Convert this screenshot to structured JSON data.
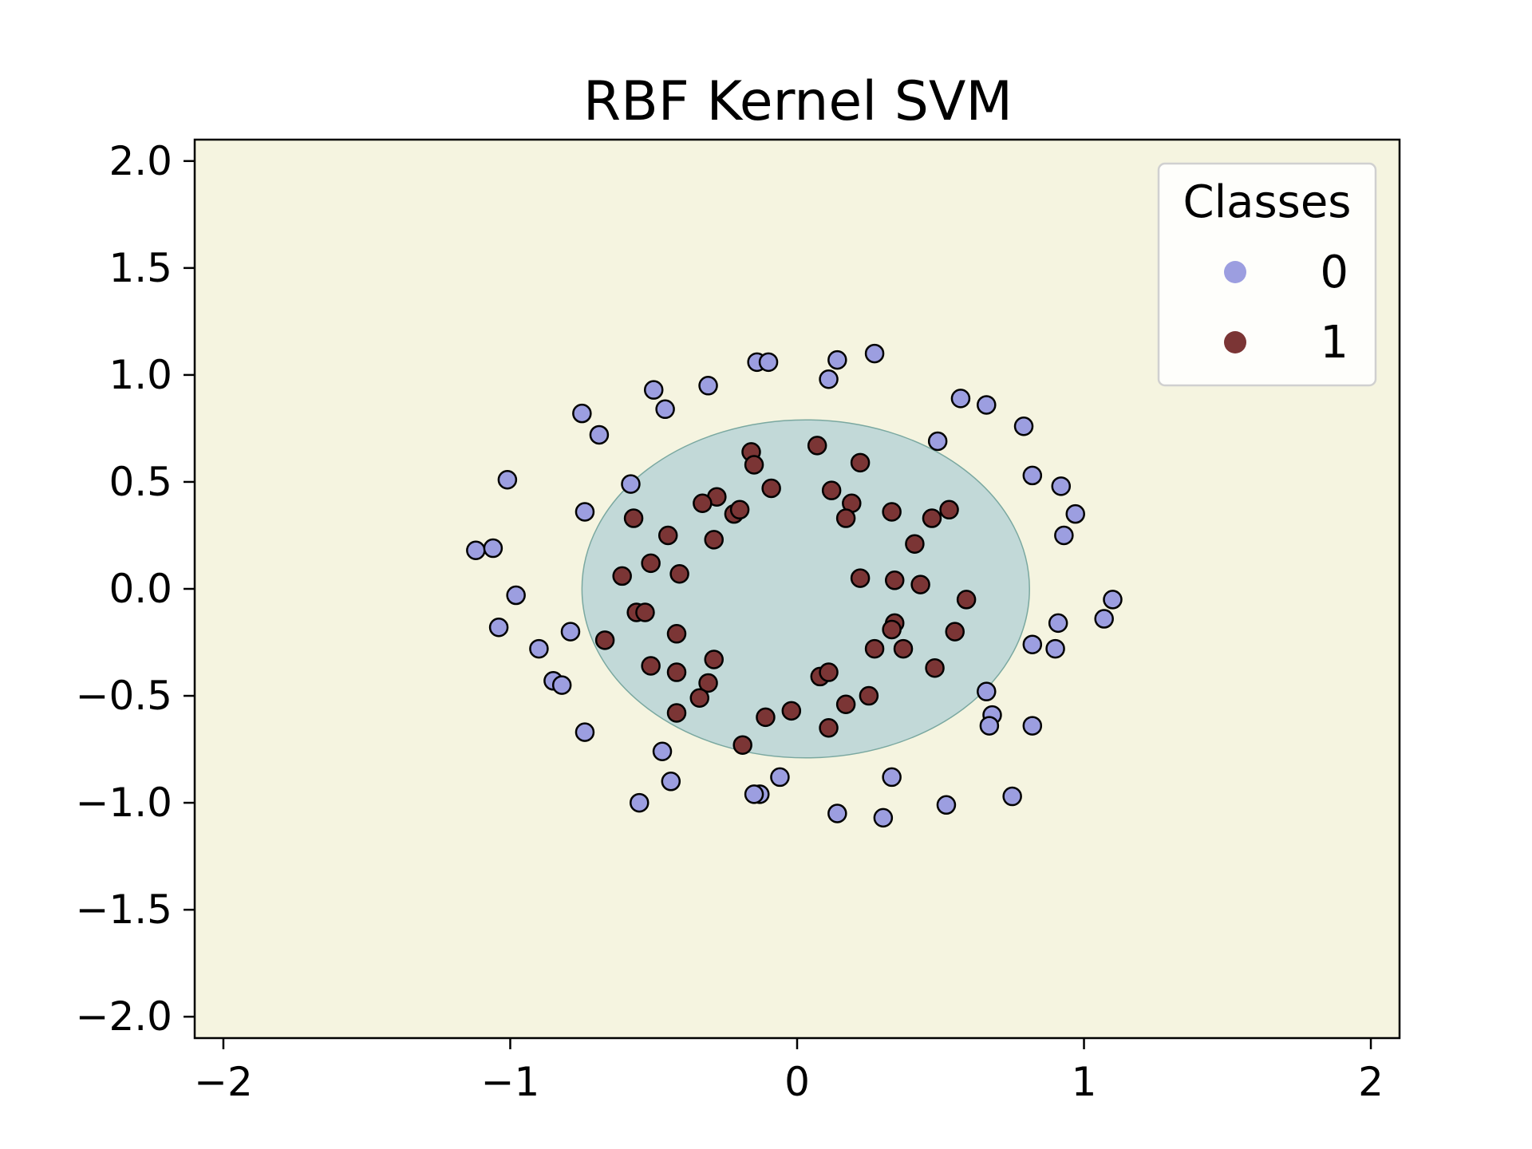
{
  "chart_data": {
    "type": "scatter",
    "title": "RBF Kernel SVM",
    "xlabel": "",
    "ylabel": "",
    "xlim": [
      -2.1,
      2.1
    ],
    "ylim": [
      -2.1,
      2.1
    ],
    "xticks": [
      -2,
      -1,
      0,
      1,
      2
    ],
    "yticks": [
      2.0,
      1.5,
      1.0,
      0.5,
      0.0,
      -0.5,
      -1.0,
      -1.5,
      -2.0
    ],
    "xtick_labels": [
      "−2",
      "−1",
      "0",
      "1",
      "2"
    ],
    "ytick_labels": [
      "2.0",
      "1.5",
      "1.0",
      "0.5",
      "0.0",
      "−0.5",
      "−1.0",
      "−1.5",
      "−2.0"
    ],
    "grid": false,
    "background_color": "#f5f4e0",
    "decision_region": {
      "shape": "approximately circular region predicted as class 1",
      "center": [
        0.03,
        0.0
      ],
      "radius_x": 0.78,
      "radius_y": 0.79,
      "fill_color": "#c2d9d8",
      "edge_color": "#7aa8a0"
    },
    "legend": {
      "title": "Classes",
      "position": "top-right",
      "entries": [
        {
          "label": "0",
          "color": "#9c9ee0"
        },
        {
          "label": "1",
          "color": "#7b3535"
        }
      ]
    },
    "series": [
      {
        "class": "0",
        "color": "#9c9ee0",
        "points": [
          [
            -1.12,
            0.18
          ],
          [
            -1.06,
            0.19
          ],
          [
            -1.01,
            0.51
          ],
          [
            -0.98,
            -0.03
          ],
          [
            -1.04,
            -0.18
          ],
          [
            -0.9,
            -0.28
          ],
          [
            -0.85,
            -0.43
          ],
          [
            -0.82,
            -0.45
          ],
          [
            -0.79,
            -0.2
          ],
          [
            -0.74,
            0.36
          ],
          [
            -0.74,
            -0.67
          ],
          [
            -0.75,
            0.82
          ],
          [
            -0.69,
            0.72
          ],
          [
            -0.58,
            0.49
          ],
          [
            -0.5,
            0.93
          ],
          [
            -0.46,
            0.84
          ],
          [
            -0.31,
            0.95
          ],
          [
            -0.14,
            1.06
          ],
          [
            -0.1,
            1.06
          ],
          [
            0.11,
            0.98
          ],
          [
            0.14,
            1.07
          ],
          [
            0.27,
            1.1
          ],
          [
            0.49,
            0.69
          ],
          [
            0.57,
            0.89
          ],
          [
            0.66,
            0.86
          ],
          [
            0.79,
            0.76
          ],
          [
            0.82,
            0.53
          ],
          [
            0.92,
            0.48
          ],
          [
            0.97,
            0.35
          ],
          [
            0.93,
            0.25
          ],
          [
            1.1,
            -0.05
          ],
          [
            1.07,
            -0.14
          ],
          [
            0.91,
            -0.16
          ],
          [
            0.9,
            -0.28
          ],
          [
            0.82,
            -0.26
          ],
          [
            0.66,
            -0.48
          ],
          [
            0.68,
            -0.59
          ],
          [
            0.67,
            -0.64
          ],
          [
            0.82,
            -0.64
          ],
          [
            0.75,
            -0.97
          ],
          [
            0.52,
            -1.01
          ],
          [
            0.33,
            -0.88
          ],
          [
            0.3,
            -1.07
          ],
          [
            0.14,
            -1.05
          ],
          [
            -0.06,
            -0.88
          ],
          [
            -0.13,
            -0.96
          ],
          [
            -0.15,
            -0.96
          ],
          [
            -0.47,
            -0.76
          ],
          [
            -0.44,
            -0.9
          ],
          [
            -0.55,
            -1.0
          ]
        ]
      },
      {
        "class": "1",
        "color": "#7b3535",
        "points": [
          [
            -0.16,
            0.64
          ],
          [
            -0.15,
            0.58
          ],
          [
            0.07,
            0.67
          ],
          [
            0.22,
            0.59
          ],
          [
            -0.09,
            0.47
          ],
          [
            0.12,
            0.46
          ],
          [
            0.19,
            0.4
          ],
          [
            0.17,
            0.33
          ],
          [
            0.33,
            0.36
          ],
          [
            0.47,
            0.33
          ],
          [
            0.53,
            0.37
          ],
          [
            0.41,
            0.21
          ],
          [
            -0.28,
            0.43
          ],
          [
            -0.33,
            0.4
          ],
          [
            -0.22,
            0.35
          ],
          [
            -0.2,
            0.37
          ],
          [
            -0.57,
            0.33
          ],
          [
            -0.45,
            0.25
          ],
          [
            -0.29,
            0.23
          ],
          [
            -0.61,
            0.06
          ],
          [
            -0.51,
            0.12
          ],
          [
            -0.41,
            0.07
          ],
          [
            0.22,
            0.05
          ],
          [
            0.34,
            0.04
          ],
          [
            0.43,
            0.02
          ],
          [
            0.59,
            -0.05
          ],
          [
            -0.56,
            -0.11
          ],
          [
            -0.53,
            -0.11
          ],
          [
            -0.67,
            -0.24
          ],
          [
            -0.42,
            -0.21
          ],
          [
            0.34,
            -0.16
          ],
          [
            0.33,
            -0.19
          ],
          [
            0.55,
            -0.2
          ],
          [
            0.27,
            -0.28
          ],
          [
            0.37,
            -0.28
          ],
          [
            -0.51,
            -0.36
          ],
          [
            -0.42,
            -0.39
          ],
          [
            -0.29,
            -0.33
          ],
          [
            0.48,
            -0.37
          ],
          [
            -0.31,
            -0.44
          ],
          [
            0.08,
            -0.41
          ],
          [
            0.11,
            -0.39
          ],
          [
            -0.34,
            -0.51
          ],
          [
            -0.42,
            -0.58
          ],
          [
            0.25,
            -0.5
          ],
          [
            0.17,
            -0.54
          ],
          [
            -0.02,
            -0.57
          ],
          [
            -0.11,
            -0.6
          ],
          [
            0.11,
            -0.65
          ],
          [
            -0.19,
            -0.73
          ]
        ]
      }
    ]
  }
}
